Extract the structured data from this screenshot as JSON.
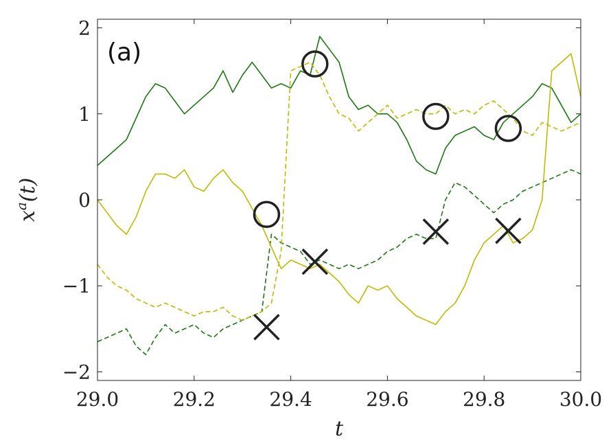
{
  "chart_data": {
    "type": "line",
    "panel_label": "(a)",
    "xlabel": "t",
    "ylabel": "x^a(t)",
    "ylabel_base": "x",
    "ylabel_sup": "a",
    "ylabel_arg": "(t)",
    "xlim": [
      29.0,
      30.0
    ],
    "ylim": [
      -2.1,
      2.1
    ],
    "xticks": [
      29.0,
      29.2,
      29.4,
      29.6,
      29.8,
      30.0
    ],
    "xtick_labels": [
      "29.0",
      "29.2",
      "29.4",
      "29.6",
      "29.8",
      "30.0"
    ],
    "yticks": [
      -2,
      -1,
      0,
      1,
      2
    ],
    "ytick_labels": [
      "−2",
      "−1",
      "0",
      "1",
      "2"
    ],
    "grid": false,
    "series": [
      {
        "color": "#1a7a10",
        "dash": "solid",
        "x": [
          29.0,
          29.02,
          29.04,
          29.06,
          29.08,
          29.1,
          29.12,
          29.14,
          29.16,
          29.18,
          29.2,
          29.22,
          29.24,
          29.26,
          29.28,
          29.3,
          29.32,
          29.34,
          29.36,
          29.38,
          29.4,
          29.42,
          29.44,
          29.46,
          29.48,
          29.5,
          29.52,
          29.54,
          29.56,
          29.58,
          29.6,
          29.62,
          29.64,
          29.66,
          29.68,
          29.7,
          29.72,
          29.74,
          29.76,
          29.78,
          29.8,
          29.82,
          29.84,
          29.86,
          29.88,
          29.9,
          29.92,
          29.94,
          29.96,
          29.98,
          30.0
        ],
        "y": [
          0.4,
          0.5,
          0.6,
          0.7,
          0.95,
          1.2,
          1.35,
          1.3,
          1.15,
          1.0,
          1.1,
          1.2,
          1.3,
          1.5,
          1.25,
          1.45,
          1.6,
          1.45,
          1.3,
          1.35,
          1.3,
          1.5,
          1.45,
          1.9,
          1.75,
          1.6,
          1.2,
          1.05,
          1.1,
          1.0,
          1.0,
          0.9,
          0.7,
          0.45,
          0.35,
          0.3,
          0.6,
          0.75,
          0.8,
          0.85,
          0.75,
          0.7,
          0.9,
          1.0,
          1.1,
          1.2,
          1.35,
          1.3,
          1.1,
          0.9,
          1.0
        ]
      },
      {
        "color": "#1a7a10",
        "dash": "dashed",
        "x": [
          29.0,
          29.02,
          29.04,
          29.06,
          29.08,
          29.1,
          29.12,
          29.14,
          29.16,
          29.18,
          29.2,
          29.22,
          29.24,
          29.26,
          29.28,
          29.3,
          29.32,
          29.34,
          29.36,
          29.38,
          29.4,
          29.42,
          29.44,
          29.46,
          29.48,
          29.5,
          29.52,
          29.54,
          29.56,
          29.58,
          29.6,
          29.62,
          29.64,
          29.66,
          29.68,
          29.7,
          29.72,
          29.74,
          29.76,
          29.78,
          29.8,
          29.82,
          29.84,
          29.86,
          29.88,
          29.9,
          29.92,
          29.94,
          29.96,
          29.98,
          30.0
        ],
        "y": [
          -1.65,
          -1.6,
          -1.55,
          -1.5,
          -1.7,
          -1.8,
          -1.6,
          -1.45,
          -1.55,
          -1.5,
          -1.45,
          -1.55,
          -1.6,
          -1.5,
          -1.45,
          -1.4,
          -1.35,
          -1.3,
          -0.4,
          -0.5,
          -0.55,
          -0.6,
          -0.75,
          -0.7,
          -0.75,
          -0.8,
          -0.75,
          -0.8,
          -0.75,
          -0.7,
          -0.6,
          -0.55,
          -0.45,
          -0.4,
          -0.45,
          -0.45,
          0.0,
          0.2,
          0.15,
          0.05,
          -0.05,
          -0.15,
          -0.05,
          0.0,
          0.1,
          0.15,
          0.2,
          0.25,
          0.3,
          0.35,
          0.3
        ]
      },
      {
        "color": "#c0bb00",
        "dash": "solid",
        "x": [
          29.0,
          29.02,
          29.04,
          29.06,
          29.08,
          29.1,
          29.12,
          29.14,
          29.16,
          29.18,
          29.2,
          29.22,
          29.24,
          29.26,
          29.28,
          29.3,
          29.32,
          29.34,
          29.36,
          29.38,
          29.4,
          29.42,
          29.44,
          29.46,
          29.48,
          29.5,
          29.52,
          29.54,
          29.56,
          29.58,
          29.6,
          29.62,
          29.64,
          29.66,
          29.68,
          29.7,
          29.72,
          29.74,
          29.76,
          29.78,
          29.8,
          29.82,
          29.84,
          29.86,
          29.88,
          29.9,
          29.92,
          29.94,
          29.96,
          29.98,
          30.0
        ],
        "y": [
          0.0,
          -0.15,
          -0.3,
          -0.4,
          -0.2,
          0.1,
          0.3,
          0.3,
          0.25,
          0.35,
          0.15,
          0.1,
          0.25,
          0.35,
          0.2,
          0.1,
          -0.1,
          -0.3,
          -0.55,
          -0.8,
          -0.7,
          -0.75,
          -0.8,
          -0.75,
          -0.85,
          -0.95,
          -1.1,
          -1.2,
          -1.0,
          -1.05,
          -1.0,
          -1.15,
          -1.25,
          -1.35,
          -1.4,
          -1.45,
          -1.3,
          -1.2,
          -1.0,
          -0.7,
          -0.5,
          -0.4,
          -0.3,
          -0.5,
          -0.45,
          -0.35,
          0.0,
          1.5,
          1.6,
          1.7,
          1.2
        ]
      },
      {
        "color": "#c0bb00",
        "dash": "dashed",
        "x": [
          29.0,
          29.02,
          29.04,
          29.06,
          29.08,
          29.1,
          29.12,
          29.14,
          29.16,
          29.18,
          29.2,
          29.22,
          29.24,
          29.26,
          29.28,
          29.3,
          29.32,
          29.34,
          29.36,
          29.38,
          29.4,
          29.42,
          29.44,
          29.46,
          29.48,
          29.5,
          29.52,
          29.54,
          29.56,
          29.58,
          29.6,
          29.62,
          29.64,
          29.66,
          29.68,
          29.7,
          29.72,
          29.74,
          29.76,
          29.78,
          29.8,
          29.82,
          29.84,
          29.86,
          29.88,
          29.9,
          29.92,
          29.94,
          29.96,
          29.98,
          30.0
        ],
        "y": [
          -0.75,
          -0.9,
          -1.0,
          -1.05,
          -1.15,
          -1.2,
          -1.25,
          -1.2,
          -1.25,
          -1.3,
          -1.35,
          -1.3,
          -1.3,
          -1.25,
          -1.35,
          -1.4,
          -1.35,
          -1.3,
          -1.2,
          -0.6,
          1.5,
          1.55,
          1.6,
          1.45,
          1.2,
          1.0,
          0.95,
          0.8,
          0.9,
          1.0,
          1.1,
          0.95,
          1.0,
          1.05,
          1.0,
          1.0,
          1.1,
          1.0,
          1.05,
          1.0,
          1.1,
          1.15,
          1.05,
          0.95,
          0.8,
          0.75,
          0.9,
          0.85,
          0.8,
          0.85,
          0.9
        ]
      }
    ],
    "circle_markers": [
      {
        "x": 29.45,
        "y": 1.58
      },
      {
        "x": 29.7,
        "y": 0.97
      },
      {
        "x": 29.85,
        "y": 0.83
      },
      {
        "x": 29.35,
        "y": -0.17
      }
    ],
    "cross_markers": [
      {
        "x": 29.35,
        "y": -1.48
      },
      {
        "x": 29.45,
        "y": -0.72
      },
      {
        "x": 29.7,
        "y": -0.37
      },
      {
        "x": 29.85,
        "y": -0.36
      }
    ]
  }
}
